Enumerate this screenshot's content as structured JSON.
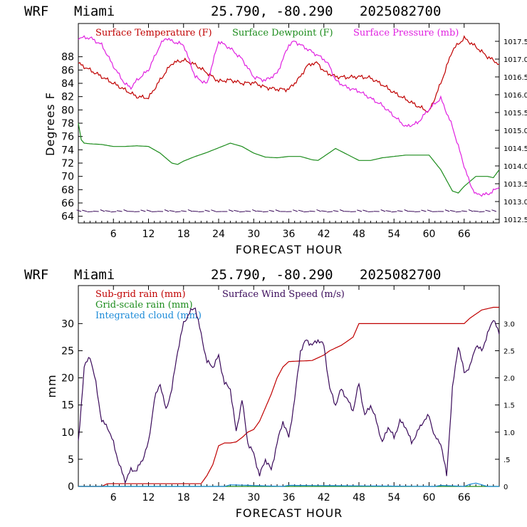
{
  "colors": {
    "temperature": "#c00000",
    "dewpoint": "#1c8c1c",
    "pressure": "#e020e0",
    "wind": "#3a0a5a",
    "subgrid": "#c00000",
    "gridscale": "#1c8c1c",
    "cloud": "#1a8ad8"
  },
  "panels": [
    {
      "header": {
        "model": "WRF",
        "location": "Miami",
        "coords": "25.790, -80.290",
        "date": "2025082700"
      },
      "legend": [
        "Surface Temperature (F)",
        "Surface Dewpoint (F)",
        "Surface Pressure (mb)"
      ],
      "ylabel": "Degrees F",
      "xlabel": "FORECAST HOUR",
      "xticks": [
        "6",
        "12",
        "18",
        "24",
        "30",
        "36",
        "42",
        "48",
        "54",
        "60",
        "66"
      ],
      "yticks_left": [
        "64",
        "66",
        "68",
        "70",
        "72",
        "74",
        "76",
        "78",
        "80",
        "82",
        "84",
        "86",
        "88"
      ],
      "yticks_right": [
        "1012.5",
        "1013.0",
        "1013.5",
        "1014.0",
        "1014.5",
        "1015.0",
        "1015.5",
        "1016.0",
        "1016.5",
        "1017.0",
        "1017.5"
      ]
    },
    {
      "header": {
        "model": "WRF",
        "location": "Miami",
        "coords": "25.790, -80.290",
        "date": "2025082700"
      },
      "legend": [
        "Sub-grid rain (mm)",
        "Surface Wind Speed (m/s)",
        "Grid-scale rain (mm)",
        "Integrated cloud (mm)"
      ],
      "ylabel": "mm",
      "xlabel": "FORECAST HOUR",
      "xticks": [
        "6",
        "12",
        "18",
        "24",
        "30",
        "36",
        "42",
        "48",
        "54",
        "60",
        "66"
      ],
      "yticks_left": [
        "0",
        "5",
        "10",
        "15",
        "20",
        "25",
        "30"
      ],
      "yticks_right": [
        "0",
        ".5",
        "1.0",
        "1.5",
        "2.0",
        "2.5",
        "3.0"
      ]
    }
  ],
  "chart_data": [
    {
      "type": "line",
      "x_label": "FORECAST HOUR",
      "y_label": "Degrees F",
      "xlim": [
        0,
        72
      ],
      "ylim": [
        63,
        93
      ],
      "y2lim": [
        1012.4,
        1018.0
      ],
      "x_ticks": [
        6,
        12,
        18,
        24,
        30,
        36,
        42,
        48,
        54,
        60,
        66
      ],
      "series": [
        {
          "name": "Surface Temperature (F)",
          "axis": "left",
          "x": [
            0,
            2,
            4,
            6,
            8,
            10,
            12,
            14,
            16,
            18,
            20,
            22,
            24,
            26,
            28,
            30,
            32,
            34,
            36,
            38,
            39,
            40,
            41,
            42,
            44,
            46,
            48,
            50,
            52,
            54,
            56,
            58,
            60,
            62,
            64,
            66,
            68,
            70,
            72
          ],
          "y": [
            87,
            86,
            85,
            84,
            83,
            82,
            81.8,
            84.5,
            87,
            87.5,
            86.8,
            85.6,
            84.3,
            84.5,
            84,
            84.1,
            83.4,
            83.1,
            83.1,
            85,
            86.5,
            87,
            87,
            85.8,
            85,
            84.9,
            85,
            84.8,
            83.8,
            82.6,
            81.6,
            80.6,
            79.7,
            84,
            89,
            90.8,
            89.5,
            88,
            86.9
          ]
        },
        {
          "name": "Surface Dewpoint (F)",
          "axis": "left",
          "x": [
            0,
            0.5,
            1,
            2,
            4,
            6,
            8,
            10,
            12,
            14,
            16,
            17,
            18,
            20,
            22,
            24,
            26,
            28,
            30,
            32,
            34,
            36,
            38,
            40,
            41,
            42,
            44,
            46,
            48,
            50,
            52,
            54,
            56,
            58,
            60,
            62,
            64,
            65,
            66,
            68,
            70,
            71,
            72
          ],
          "y": [
            78,
            75.5,
            75,
            74.9,
            74.8,
            74.5,
            74.5,
            74.6,
            74.5,
            73.5,
            72,
            71.8,
            72.3,
            73,
            73.6,
            74.3,
            75,
            74.5,
            73.5,
            72.9,
            72.8,
            73,
            73,
            72.5,
            72.4,
            73,
            74.2,
            73.3,
            72.4,
            72.4,
            72.8,
            73,
            73.2,
            73.2,
            73.2,
            71,
            67.8,
            67.5,
            68.5,
            70,
            70,
            69.8,
            71
          ]
        },
        {
          "name": "Surface Pressure (mb)",
          "axis": "right",
          "x": [
            0,
            2,
            4,
            6,
            8,
            9,
            10,
            12,
            14,
            15,
            16,
            18,
            20,
            22,
            24,
            26,
            28,
            30,
            32,
            34,
            36,
            37,
            38,
            40,
            42,
            43,
            44,
            46,
            48,
            50,
            52,
            54,
            56,
            58,
            60,
            62,
            64,
            66,
            67,
            68,
            70,
            72
          ],
          "y": [
            1017.6,
            1017.6,
            1017.4,
            1016.8,
            1016.3,
            1016.2,
            1016.4,
            1016.7,
            1017.4,
            1017.6,
            1017.5,
            1017.4,
            1016.5,
            1016.3,
            1017.5,
            1017.3,
            1017.0,
            1016.5,
            1016.4,
            1016.6,
            1017.4,
            1017.5,
            1017.4,
            1017.2,
            1017.0,
            1016.8,
            1016.4,
            1016.2,
            1016.1,
            1015.9,
            1015.7,
            1015.4,
            1015.1,
            1015.2,
            1015.6,
            1015.9,
            1015.1,
            1014.0,
            1013.5,
            1013.2,
            1013.2,
            1013.4
          ]
        }
      ]
    },
    {
      "type": "line",
      "x_label": "FORECAST HOUR",
      "y_label": "mm",
      "xlim": [
        0,
        72
      ],
      "ylim": [
        0,
        37
      ],
      "y2lim": [
        0,
        3.7
      ],
      "x_ticks": [
        6,
        12,
        18,
        24,
        30,
        36,
        42,
        48,
        54,
        60,
        66
      ],
      "series": [
        {
          "name": "Sub-grid rain (mm)",
          "axis": "left",
          "x": [
            0,
            4,
            5,
            21,
            22,
            23,
            24,
            25,
            26,
            27,
            28,
            29,
            30,
            31,
            32,
            33,
            34,
            35,
            36,
            40,
            42,
            43,
            45,
            47,
            48,
            58,
            66,
            67,
            69,
            71,
            72
          ],
          "y": [
            0,
            0,
            0.5,
            0.5,
            2,
            4,
            7.5,
            8,
            8,
            8.2,
            9,
            10,
            10.5,
            12,
            14.5,
            17,
            20,
            22,
            23,
            23.2,
            24.2,
            25,
            26,
            27.5,
            30,
            30,
            30,
            31,
            32.5,
            33,
            33
          ]
        },
        {
          "name": "Surface Wind Speed (m/s)",
          "axis": "right",
          "x": [
            0,
            1,
            2,
            3,
            4,
            5,
            6,
            7,
            8,
            9,
            10,
            11,
            12,
            13,
            14,
            15,
            16,
            17,
            18,
            19,
            20,
            21,
            22,
            23,
            24,
            25,
            26,
            27,
            28,
            29,
            30,
            31,
            32,
            33,
            34,
            35,
            36,
            37,
            38,
            39,
            40,
            41,
            42,
            43,
            44,
            45,
            46,
            47,
            48,
            49,
            50,
            51,
            52,
            53,
            54,
            55,
            56,
            57,
            58,
            59,
            60,
            61,
            62,
            63,
            64,
            65,
            66,
            67,
            68,
            69,
            70,
            71,
            72
          ],
          "y": [
            0.8,
            2.2,
            2.4,
            1.9,
            1.2,
            1.1,
            0.8,
            0.4,
            0.1,
            0.3,
            0.3,
            0.5,
            0.8,
            1.6,
            1.9,
            1.4,
            1.8,
            2.5,
            3.0,
            3.2,
            3.3,
            2.8,
            2.3,
            2.2,
            2.4,
            1.9,
            1.8,
            1.0,
            1.6,
            0.8,
            0.6,
            0.2,
            0.5,
            0.3,
            0.8,
            1.2,
            0.9,
            1.6,
            2.5,
            2.7,
            2.6,
            2.7,
            2.6,
            1.8,
            1.5,
            1.8,
            1.6,
            1.4,
            1.9,
            1.3,
            1.5,
            1.2,
            0.8,
            1.1,
            0.9,
            1.2,
            1.1,
            0.8,
            1.0,
            1.2,
            1.3,
            0.9,
            0.8,
            0.2,
            1.8,
            2.6,
            2.1,
            2.2,
            2.6,
            2.5,
            2.8,
            3.1,
            2.8
          ]
        },
        {
          "name": "Grid-scale rain (mm)",
          "axis": "left",
          "x": [
            0,
            72
          ],
          "y": [
            0,
            0
          ]
        },
        {
          "name": "Integrated cloud (mm)",
          "axis": "left",
          "x": [
            0,
            25,
            26,
            35,
            36,
            61,
            62,
            66,
            67,
            68,
            69,
            70,
            72
          ],
          "y": [
            0,
            0,
            0.3,
            0,
            0.2,
            0,
            0.2,
            0,
            0.4,
            0.6,
            0.3,
            0,
            0
          ]
        }
      ]
    }
  ]
}
